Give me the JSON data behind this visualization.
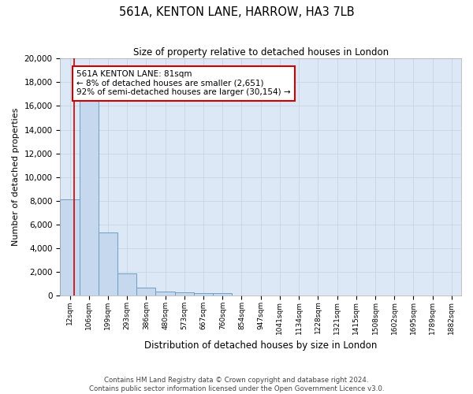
{
  "title": "561A, KENTON LANE, HARROW, HA3 7LB",
  "subtitle": "Size of property relative to detached houses in London",
  "xlabel": "Distribution of detached houses by size in London",
  "ylabel": "Number of detached properties",
  "bar_labels": [
    "12sqm",
    "106sqm",
    "199sqm",
    "293sqm",
    "386sqm",
    "480sqm",
    "573sqm",
    "667sqm",
    "760sqm",
    "854sqm",
    "947sqm",
    "1041sqm",
    "1134sqm",
    "1228sqm",
    "1321sqm",
    "1415sqm",
    "1508sqm",
    "1602sqm",
    "1695sqm",
    "1789sqm",
    "1882sqm"
  ],
  "bar_values": [
    8100,
    16600,
    5300,
    1850,
    700,
    360,
    290,
    230,
    190,
    0,
    0,
    0,
    0,
    0,
    0,
    0,
    0,
    0,
    0,
    0,
    0
  ],
  "bar_color": "#c5d8ee",
  "bar_edge_color": "#6ca0c8",
  "grid_color": "#c8d4e0",
  "bg_color": "#dce8f5",
  "annotation_text_line1": "561A KENTON LANE: 81sqm",
  "annotation_text_line2": "← 8% of detached houses are smaller (2,651)",
  "annotation_text_line3": "92% of semi-detached houses are larger (30,154) →",
  "red_line_color": "#cc0000",
  "annotation_box_color": "#ffffff",
  "annotation_box_edge": "#cc0000",
  "footnote": "Contains HM Land Registry data © Crown copyright and database right 2024.\nContains public sector information licensed under the Open Government Licence v3.0.",
  "ylim": [
    0,
    20000
  ],
  "yticks": [
    0,
    2000,
    4000,
    6000,
    8000,
    10000,
    12000,
    14000,
    16000,
    18000,
    20000
  ]
}
